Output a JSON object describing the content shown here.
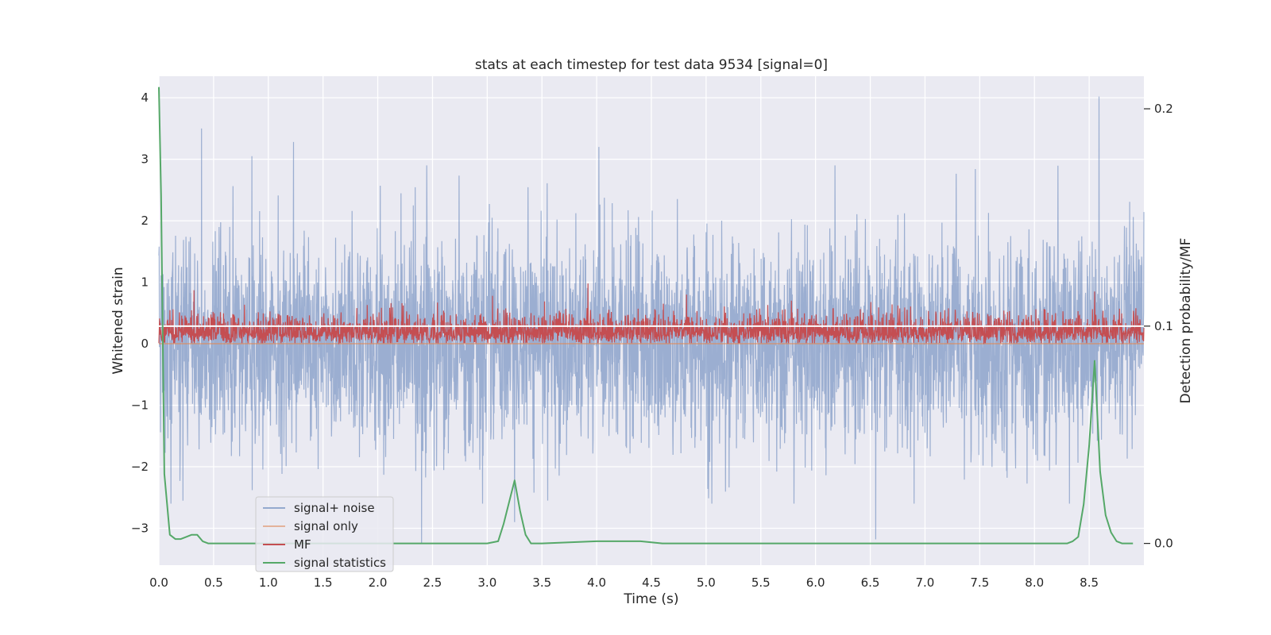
{
  "chart_data": {
    "type": "line",
    "title": "stats at each timestep for test data 9534 [signal=0]",
    "xlabel": "Time (s)",
    "ylabel": "Whitened strain",
    "y2label": "Detection probability/MF",
    "xlim": [
      0,
      9
    ],
    "ylim": [
      -3.6,
      4.35
    ],
    "y2lim": [
      -0.01,
      0.215
    ],
    "x_ticks": [
      "0.0",
      "0.5",
      "1.0",
      "1.5",
      "2.0",
      "2.5",
      "3.0",
      "3.5",
      "4.0",
      "4.5",
      "5.0",
      "5.5",
      "6.0",
      "6.5",
      "7.0",
      "7.5",
      "8.0",
      "8.5"
    ],
    "y_ticks": [
      "4",
      "3",
      "2",
      "1",
      "0",
      "−1",
      "−2",
      "−3"
    ],
    "y2_ticks": [
      "0.2",
      "0.1",
      "0.0"
    ],
    "grid": true,
    "legend_position": "lower-left",
    "colors": {
      "signal_noise": "#4c72b0",
      "signal_only": "#dd8452",
      "mf": "#c44e52",
      "signal_statistics": "#55a868",
      "white_line": "#ffffff",
      "background": "#eaeaf2"
    },
    "series": [
      {
        "name": "signal+ noise",
        "axis": "left",
        "kind": "noise",
        "x_range": [
          0,
          9
        ],
        "amplitude_std": 0.85,
        "peaks": [
          [
            0.39,
            3.5
          ],
          [
            1.23,
            3.28
          ],
          [
            4.02,
            3.2
          ],
          [
            8.59,
            4.02
          ],
          [
            0.85,
            3.05
          ],
          [
            2.4,
            -3.25
          ],
          [
            6.55,
            -3.18
          ],
          [
            3.25,
            -2.9
          ]
        ]
      },
      {
        "name": "signal only",
        "axis": "left",
        "kind": "flat",
        "x": [
          0,
          9
        ],
        "values": [
          0,
          0
        ]
      },
      {
        "name": "MF",
        "axis": "left",
        "kind": "noise-positive",
        "x_range": [
          0,
          9
        ],
        "base": 0.18,
        "amplitude": 0.3,
        "peaks": [
          [
            0.32,
            0.87
          ],
          [
            3.05,
            0.78
          ],
          [
            3.92,
            0.98
          ],
          [
            4.82,
            0.8
          ],
          [
            8.55,
            0.85
          ]
        ]
      },
      {
        "name": "signal statistics",
        "axis": "right",
        "x": [
          0.0,
          0.02,
          0.05,
          0.1,
          0.15,
          0.2,
          0.25,
          0.3,
          0.35,
          0.4,
          0.45,
          0.5,
          1.0,
          2.0,
          3.0,
          3.1,
          3.15,
          3.2,
          3.25,
          3.3,
          3.35,
          3.4,
          3.5,
          4.0,
          4.4,
          4.6,
          5.0,
          7.5,
          8.2,
          8.3,
          8.35,
          8.4,
          8.45,
          8.5,
          8.55,
          8.6,
          8.65,
          8.7,
          8.75,
          8.8,
          8.9
        ],
        "values": [
          0.21,
          0.16,
          0.032,
          0.004,
          0.002,
          0.002,
          0.003,
          0.004,
          0.004,
          0.001,
          0.0,
          0.0,
          0.0,
          0.0,
          0.0,
          0.001,
          0.009,
          0.019,
          0.029,
          0.015,
          0.004,
          0.0,
          0.0,
          0.001,
          0.001,
          0.0,
          0.0,
          0.0,
          0.0,
          0.0,
          0.001,
          0.003,
          0.018,
          0.045,
          0.084,
          0.033,
          0.013,
          0.005,
          0.001,
          0.0,
          0.0
        ]
      }
    ],
    "white_line": {
      "axis": "right",
      "y": 0.1
    }
  }
}
